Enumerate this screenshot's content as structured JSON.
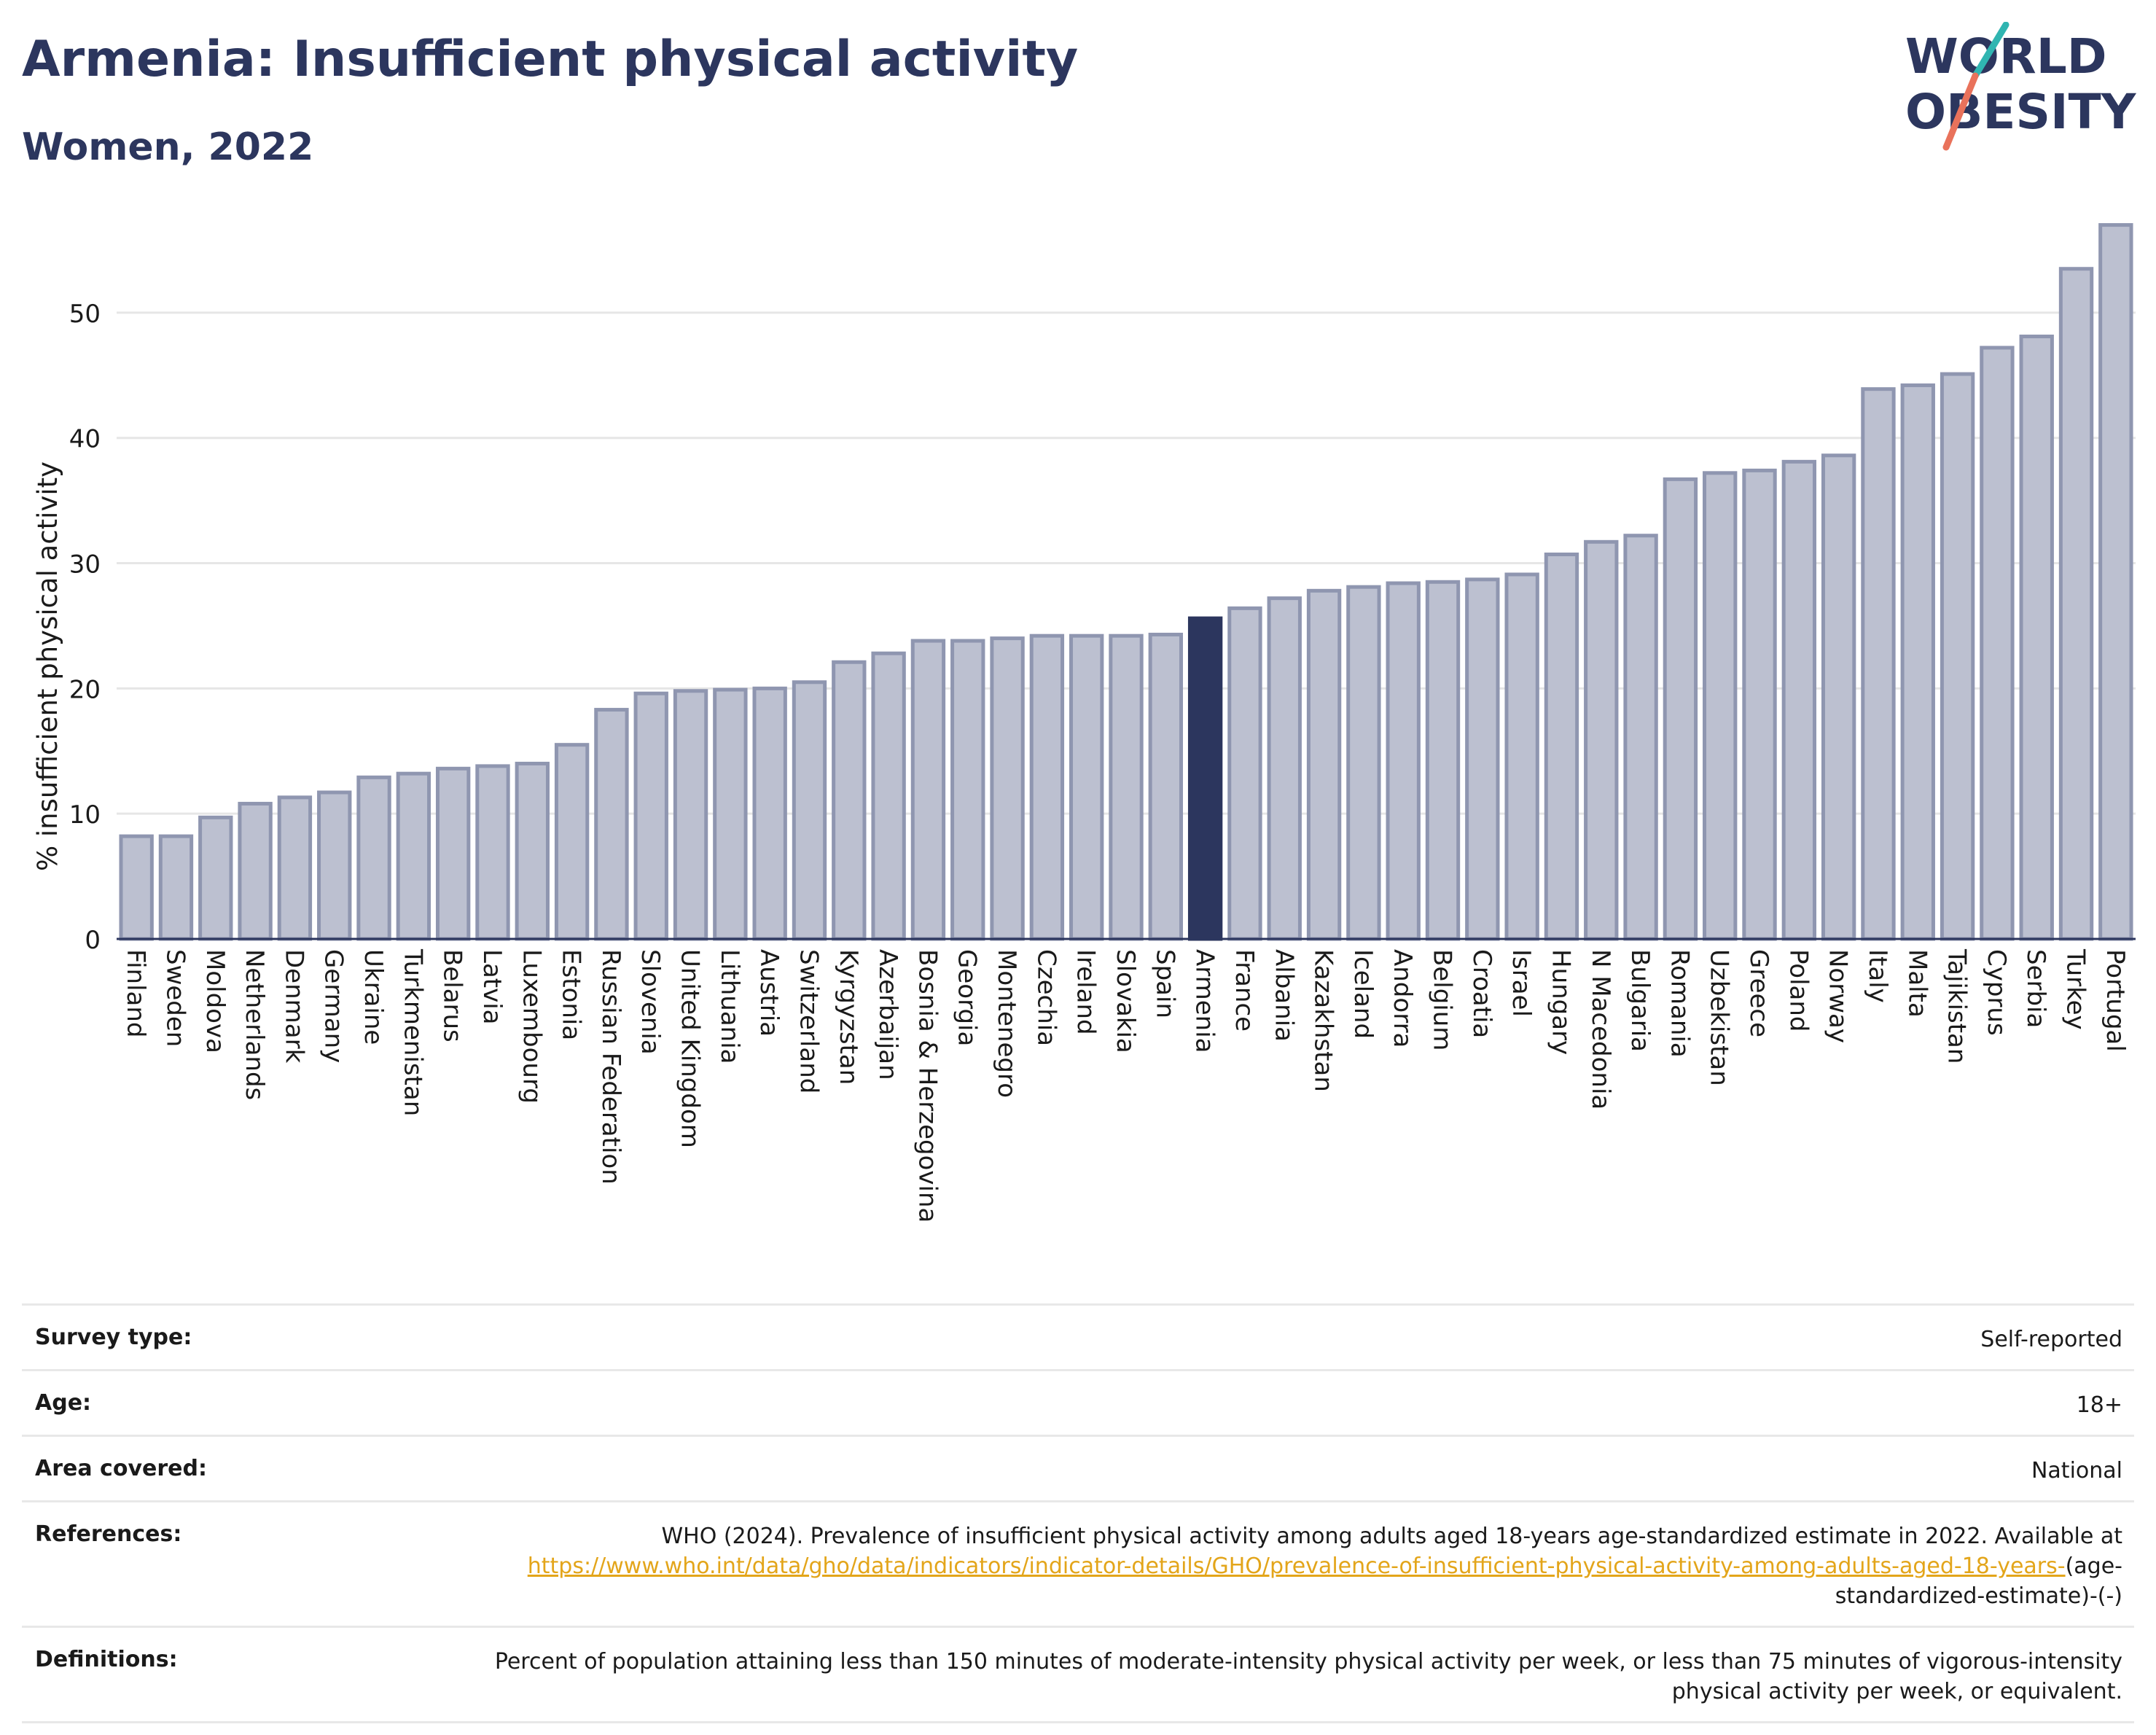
{
  "header": {
    "title": "Armenia: Insufficient physical activity",
    "subtitle": "Women, 2022",
    "logo": {
      "line1": "WORLD",
      "line2": "OBESITY"
    }
  },
  "colors": {
    "title": "#2c365e",
    "bar": "#bcc0d0",
    "bar_outline": "#8f96b0",
    "highlight": "#2c365e",
    "logo_teal": "#30b5b1",
    "logo_coral": "#e9725b",
    "link": "#e3a51a"
  },
  "chart_data": {
    "type": "bar",
    "title": "Armenia: Insufficient physical activity",
    "subtitle": "Women, 2022",
    "xlabel": "",
    "ylabel": "% insufficient physical activity",
    "ylim": [
      0,
      57.5
    ],
    "yticks": [
      0,
      10,
      20,
      30,
      40,
      50
    ],
    "grid": true,
    "highlight": "Armenia",
    "categories": [
      "Finland",
      "Sweden",
      "Moldova",
      "Netherlands",
      "Denmark",
      "Germany",
      "Ukraine",
      "Turkmenistan",
      "Belarus",
      "Latvia",
      "Luxembourg",
      "Estonia",
      "Russian Federation",
      "Slovenia",
      "United Kingdom",
      "Lithuania",
      "Austria",
      "Switzerland",
      "Kyrgyzstan",
      "Azerbaijan",
      "Bosnia & Herzegovina",
      "Georgia",
      "Montenegro",
      "Czechia",
      "Ireland",
      "Slovakia",
      "Spain",
      "Armenia",
      "France",
      "Albania",
      "Kazakhstan",
      "Iceland",
      "Andorra",
      "Belgium",
      "Croatia",
      "Israel",
      "Hungary",
      "N Macedonia",
      "Bulgaria",
      "Romania",
      "Uzbekistan",
      "Greece",
      "Poland",
      "Norway",
      "Italy",
      "Malta",
      "Tajikistan",
      "Cyprus",
      "Serbia",
      "Turkey",
      "Portugal"
    ],
    "values": [
      8.2,
      8.2,
      9.7,
      10.8,
      11.3,
      11.7,
      12.9,
      13.2,
      13.6,
      13.8,
      14.0,
      15.5,
      18.3,
      19.6,
      19.8,
      19.9,
      20.0,
      20.5,
      22.1,
      22.8,
      23.8,
      23.8,
      24.0,
      24.2,
      24.2,
      24.2,
      24.3,
      25.6,
      26.4,
      27.2,
      27.8,
      28.1,
      28.4,
      28.5,
      28.7,
      29.1,
      30.7,
      31.7,
      32.2,
      36.7,
      37.2,
      37.4,
      38.1,
      38.6,
      43.9,
      44.2,
      45.1,
      47.2,
      48.1,
      53.5,
      57.0
    ]
  },
  "meta": {
    "rows": [
      {
        "label": "Survey type:",
        "value": "Self-reported"
      },
      {
        "label": "Age:",
        "value": "18+"
      },
      {
        "label": "Area covered:",
        "value": "National"
      }
    ],
    "references": {
      "label": "References:",
      "text": "WHO (2024). Prevalence of insufficient physical activity among adults aged 18-years age-standardized estimate in 2022. Available at",
      "link": "https://www.who.int/data/gho/data/indicators/indicator-details/GHO/prevalence-of-insufficient-physical-activity-among-adults-aged-18-years-",
      "suffix": "(age-standardized-estimate)-(-)"
    },
    "definitions": {
      "label": "Definitions:",
      "value": "Percent of population attaining less than 150 minutes of moderate-intensity physical activity per week, or less than 75 minutes of vigorous-intensity physical activity per week, or equivalent."
    }
  }
}
